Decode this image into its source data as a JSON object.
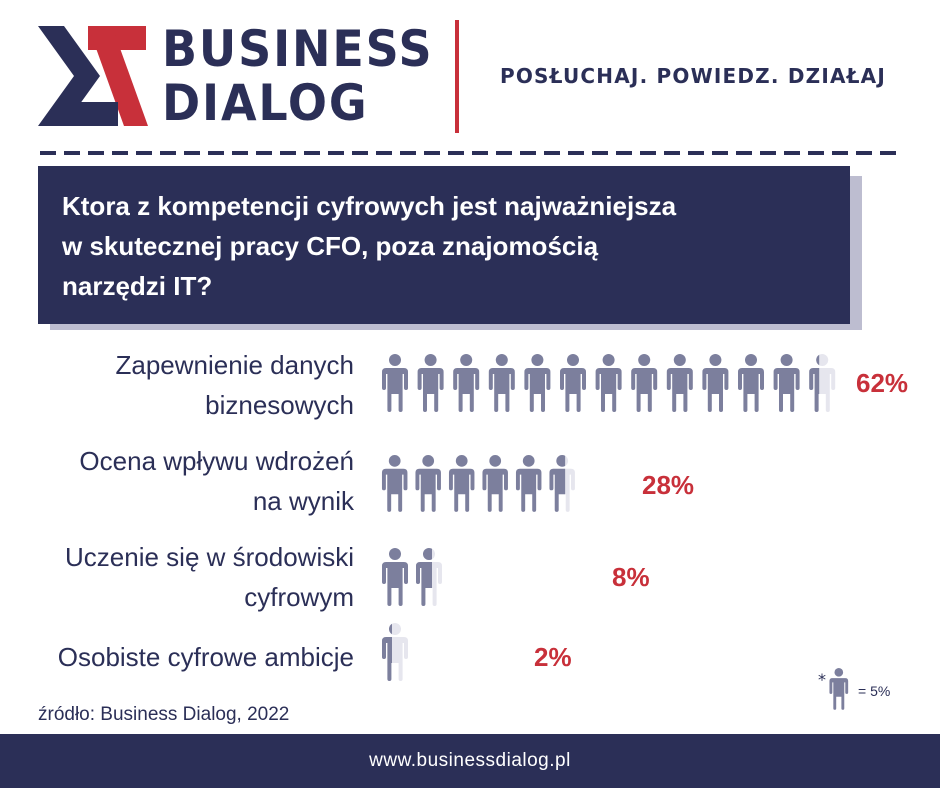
{
  "header": {
    "brand_line1": "BUSINESS",
    "brand_line2": "DIALOG",
    "tagline": "POSŁUCHAJ. POWIEDZ. DZIAŁAJ"
  },
  "colors": {
    "navy": "#2b2f57",
    "red": "#c8303a",
    "icon_fill": "#7c7f9d",
    "icon_empty": "#e6e6ee",
    "shadow": "#bdbdd0"
  },
  "legend": {
    "star": "*",
    "text": "= 5%",
    "unit_percent": 5,
    "icon": "person-icon"
  },
  "chart_data": {
    "type": "pictograph",
    "title": "Ktora z kompetencji cyfrowych jest najważniejsza w skutecznej pracy CFO, poza znajomością narzędzi IT?",
    "title_lines": [
      "Ktora z kompetencji cyfrowych jest najważniejsza",
      "w skutecznej pracy CFO, poza znajomością",
      "narzędzi IT?"
    ],
    "unit_percent": 5,
    "categories": [
      {
        "lines": [
          "Zapewnienie danych",
          "biznesowych"
        ],
        "value": 62,
        "value_label": "62%"
      },
      {
        "lines": [
          "Ocena wpływu wdrożeń",
          "na wynik"
        ],
        "value": 28,
        "value_label": "28%"
      },
      {
        "lines": [
          "Uczenie się w środowiski",
          "cyfrowym"
        ],
        "value": 8,
        "value_label": "8%"
      },
      {
        "lines": [
          "Osobiste cyfrowe ambicje"
        ],
        "value": 2,
        "value_label": "2%"
      }
    ]
  },
  "source": "źródło: Business Dialog, 2022",
  "footer": {
    "url": "www.businessdialog.pl"
  }
}
